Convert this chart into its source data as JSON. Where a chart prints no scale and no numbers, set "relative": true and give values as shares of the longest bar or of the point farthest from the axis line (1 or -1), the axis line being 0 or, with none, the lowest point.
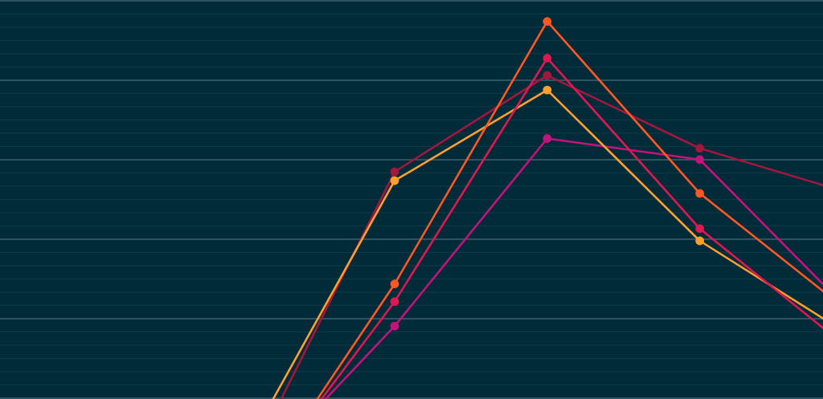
{
  "chart_data": {
    "type": "line",
    "relative": true,
    "categories": [
      null,
      null,
      null,
      null,
      null
    ],
    "series": [
      {
        "color": "#a3173f",
        "values": [
          0.069,
          0.693,
          0.89,
          0.741,
          0.648
        ]
      },
      {
        "color": "#c4137a",
        "values": [
          0.049,
          0.378,
          0.761,
          0.718,
          0.403
        ]
      },
      {
        "color": "#ff9f2c",
        "values": [
          0.115,
          0.675,
          0.86,
          0.552,
          0.356
        ]
      },
      {
        "color": "#de1850",
        "values": [
          0.013,
          0.428,
          0.925,
          0.577,
          0.326
        ]
      },
      {
        "color": "#ff5722",
        "values": [
          0,
          0.464,
          1,
          0.649,
          0.402
        ]
      }
    ],
    "marker": "circle"
  }
}
